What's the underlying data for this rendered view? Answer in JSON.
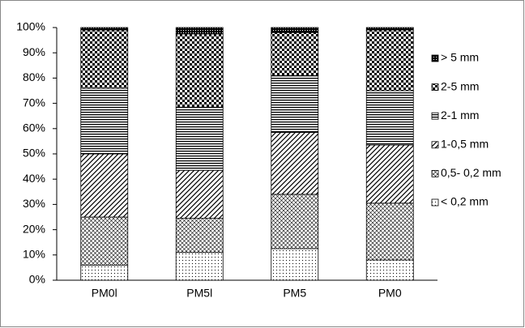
{
  "chart_data": {
    "type": "stacked-bar",
    "categories": [
      "PM0l",
      "PM5l",
      "PM5",
      "PM0"
    ],
    "series": [
      {
        "name": "< 0,2 mm",
        "color": "#000000",
        "pattern": "fine-dots",
        "values": [
          6,
          11,
          12.5,
          8
        ]
      },
      {
        "name": "0,5- 0,2 mm",
        "color": "#000000",
        "pattern": "crosshatch",
        "values": [
          19,
          13.5,
          21.5,
          22.5
        ]
      },
      {
        "name": "1-0,5 mm",
        "color": "#000000",
        "pattern": "diagonal",
        "values": [
          25,
          19,
          24.5,
          23
        ]
      },
      {
        "name": "2-1 mm",
        "color": "#000000",
        "pattern": "horizontal",
        "values": [
          26,
          25,
          22.5,
          21.5
        ]
      },
      {
        "name": "2-5 mm",
        "color": "#000000",
        "pattern": "checker",
        "values": [
          23,
          29,
          17,
          24
        ]
      },
      {
        "name": "> 5 mm",
        "color": "#000000",
        "pattern": "dense",
        "values": [
          1,
          2.5,
          2,
          1
        ]
      }
    ],
    "ylim": [
      0,
      100
    ],
    "yticks": [
      {
        "value": 0,
        "label": "0%"
      },
      {
        "value": 10,
        "label": "10%"
      },
      {
        "value": 20,
        "label": "20%"
      },
      {
        "value": 30,
        "label": "30%"
      },
      {
        "value": 40,
        "label": "40%"
      },
      {
        "value": 50,
        "label": "50%"
      },
      {
        "value": 60,
        "label": "60%"
      },
      {
        "value": 70,
        "label": "70%"
      },
      {
        "value": 80,
        "label": "80%"
      },
      {
        "value": 90,
        "label": "90%"
      },
      {
        "value": 100,
        "label": "100%"
      }
    ],
    "grid": false,
    "legend": "right"
  }
}
